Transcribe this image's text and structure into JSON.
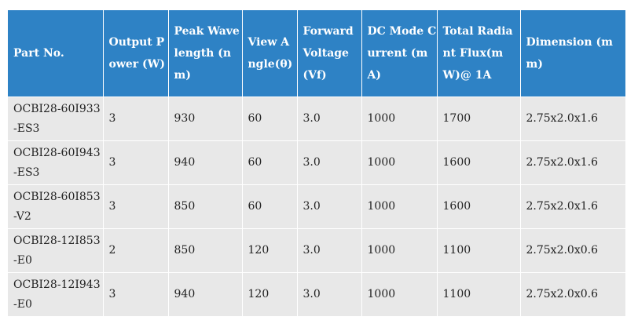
{
  "table": {
    "headers": [
      "Part No.",
      "Output Power (W)",
      "Peak Wavelength (nm)",
      "View Angle(θ)",
      "Forward Voltage (Vf)",
      "DC Mode Current (mA)",
      "Total Radiant Flux(mW)@ 1A",
      "Dimension (mm)"
    ],
    "rows": [
      [
        "OCBI28-60I933-ES3",
        "3",
        "930",
        "60",
        "3.0",
        "1000",
        "1700",
        "2.75x2.0x1.6"
      ],
      [
        "OCBI28-60I943-ES3",
        "3",
        "940",
        "60",
        "3.0",
        "1000",
        "1600",
        "2.75x2.0x1.6"
      ],
      [
        "OCBI28-60I853-V2",
        "3",
        "850",
        "60",
        "3.0",
        "1000",
        "1600",
        "2.75x2.0x1.6"
      ],
      [
        "OCBI28-12I853-E0",
        "2",
        "850",
        "120",
        "3.0",
        "1000",
        "1100",
        "2.75x2.0x0.6"
      ],
      [
        "OCBI28-12I943-E0",
        "3",
        "940",
        "120",
        "3.0",
        "1000",
        "1100",
        "2.75x2.0x0.6"
      ]
    ]
  },
  "colors": {
    "header_bg": "#2e82c5",
    "header_text": "#ffffff",
    "body_bg": "#e8e8e8",
    "body_text": "#222222"
  }
}
